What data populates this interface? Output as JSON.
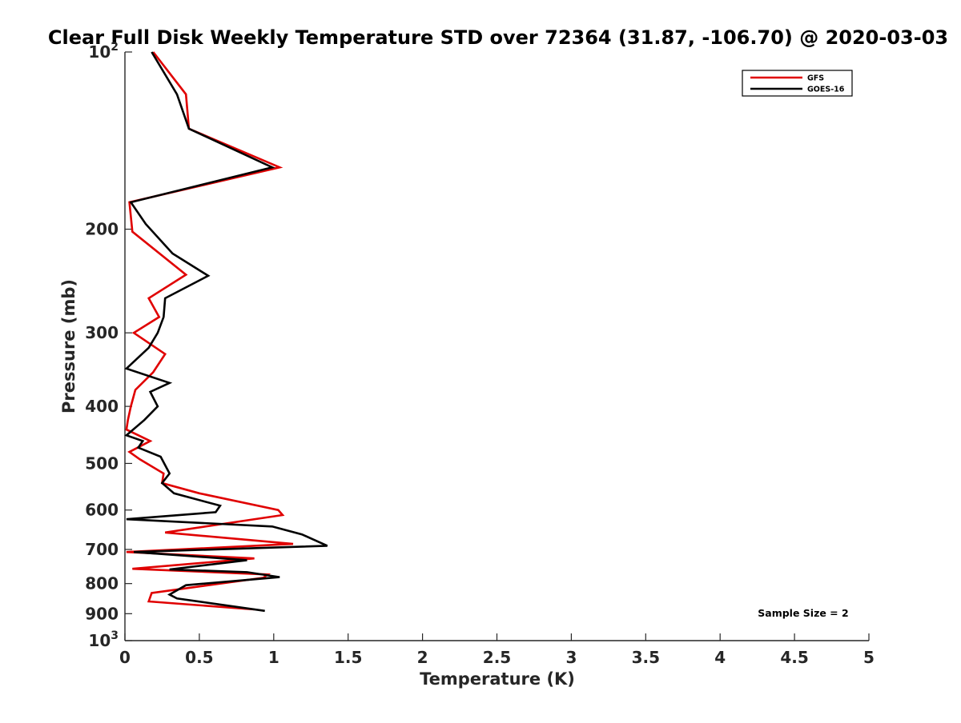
{
  "chart_data": {
    "type": "line",
    "title": "Clear Full Disk Weekly Temperature STD over 72364 (31.87, -106.70) @ 2020-03-03",
    "xlabel": "Temperature (K)",
    "ylabel": "Pressure (mb)",
    "xlim": [
      0,
      5
    ],
    "ylim": [
      100,
      1000
    ],
    "y_scale": "log",
    "y_reversed": true,
    "grid": false,
    "legend_position": "top-right",
    "x_ticks": [
      0,
      0.5,
      1,
      1.5,
      2,
      2.5,
      3,
      3.5,
      4,
      4.5,
      5
    ],
    "x_tick_labels": [
      "0",
      "0.5",
      "1",
      "1.5",
      "2",
      "2.5",
      "3",
      "3.5",
      "4",
      "4.5",
      "5"
    ],
    "y_ticks": [
      100,
      200,
      300,
      400,
      500,
      600,
      700,
      800,
      900,
      1000
    ],
    "y_tick_labels": [
      {
        "base": "10",
        "exp": "2"
      },
      {
        "base": "200"
      },
      {
        "base": "300"
      },
      {
        "base": "400"
      },
      {
        "base": "500"
      },
      {
        "base": "600"
      },
      {
        "base": "700"
      },
      {
        "base": "800"
      },
      {
        "base": "900"
      },
      {
        "base": "10",
        "exp": "3"
      }
    ],
    "annotation": "Sample Size = 2",
    "series": [
      {
        "name": "GFS",
        "color": "#e00000",
        "x": [
          0.19,
          0.41,
          0.43,
          1.04,
          0.03,
          0.05,
          0.41,
          0.16,
          0.23,
          0.06,
          0.27,
          0.19,
          0.07,
          0.04,
          0.02,
          0.01,
          0.17,
          0.03,
          0.1,
          0.26,
          0.25,
          0.5,
          1.03,
          1.06,
          0.27,
          1.13,
          0.01,
          0.87,
          0.05,
          0.96,
          0.93,
          0.18,
          0.16,
          0.87
        ],
        "y": [
          100,
          118,
          135,
          157,
          180,
          202,
          239,
          262,
          282,
          300,
          326,
          350,
          375,
          400,
          422,
          438,
          458,
          478,
          492,
          520,
          540,
          562,
          600,
          612,
          655,
          685,
          707,
          725,
          755,
          772,
          782,
          830,
          858,
          885
        ]
      },
      {
        "name": "GOES-16",
        "color": "#000000",
        "x": [
          0.18,
          0.35,
          0.43,
          0.99,
          0.04,
          0.14,
          0.32,
          0.56,
          0.27,
          0.26,
          0.22,
          0.16,
          0.01,
          0.3,
          0.17,
          0.22,
          0.13,
          0.01,
          0.12,
          0.09,
          0.24,
          0.3,
          0.25,
          0.33,
          0.64,
          0.61,
          0.01,
          0.99,
          1.19,
          1.36,
          0.06,
          0.82,
          0.3,
          0.82,
          1.04,
          0.41,
          0.3,
          0.35,
          0.94
        ],
        "y": [
          100,
          118,
          135,
          157,
          180,
          196,
          220,
          240,
          262,
          282,
          300,
          318,
          345,
          365,
          378,
          400,
          422,
          448,
          458,
          470,
          487,
          520,
          540,
          562,
          590,
          605,
          622,
          640,
          660,
          690,
          707,
          730,
          757,
          765,
          780,
          805,
          835,
          848,
          890
        ]
      }
    ]
  }
}
